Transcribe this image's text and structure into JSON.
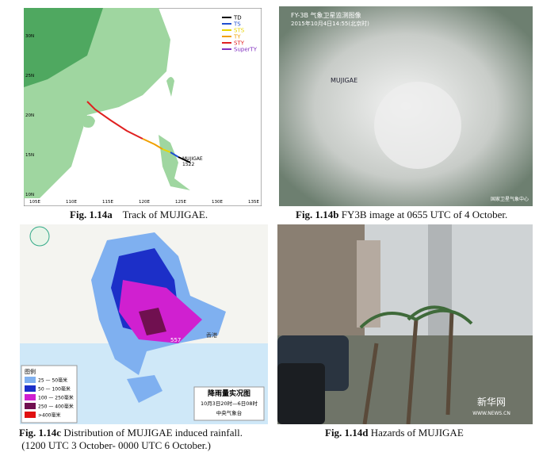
{
  "panel_a": {
    "legend": [
      {
        "name": "TD",
        "color": "#000000"
      },
      {
        "name": "TS",
        "color": "#1f4fd0"
      },
      {
        "name": "STS",
        "color": "#e8d400"
      },
      {
        "name": "TY",
        "color": "#f0a000"
      },
      {
        "name": "STY",
        "color": "#e02020"
      },
      {
        "name": "SuperTY",
        "color": "#8030c0"
      }
    ],
    "lat_labels": [
      "30N",
      "25N",
      "20N",
      "15N",
      "10N"
    ],
    "lon_labels": [
      "105E",
      "110E",
      "115E",
      "120E",
      "125E",
      "130E",
      "135E"
    ],
    "storm_name": "MUJIGAE",
    "storm_number": "1522"
  },
  "panel_b": {
    "header": "FY-3B 气象卫星监测图像",
    "time": "2015年10月4日14:55(北京时)",
    "storm_name": "MUJIGAE",
    "credit": "国家卫星气象中心"
  },
  "panel_c": {
    "legend_title": "图例",
    "legend": [
      {
        "label": "25 — 50毫米",
        "color": "#7fb0f0"
      },
      {
        "label": "50 — 100毫米",
        "color": "#1c2fc8"
      },
      {
        "label": "100 — 250毫米",
        "color": "#d020d0"
      },
      {
        "label": "250 — 400毫米",
        "color": "#701050"
      },
      {
        "label": ">400毫米",
        "color": "#e01010"
      }
    ],
    "title": "降雨量实况图",
    "period": "10月3日20时—6日08时",
    "agency": "中央气象台",
    "max_value": "557",
    "city": "香港"
  },
  "panel_d": {
    "watermark": "新华网",
    "url": "WWW.NEWS.CN"
  },
  "captions": [
    {
      "label": "Fig. 1.14a",
      "text": "Track of MUJIGAE."
    },
    {
      "label": "Fig. 1.14b",
      "text": "FY3B image at 0655 UTC of 4 October."
    },
    {
      "label": "Fig. 1.14c",
      "text": "Distribution of MUJIGAE induced rainfall.",
      "text2": "(1200 UTC 3 October- 0000 UTC 6 October.)"
    },
    {
      "label": "Fig. 1.14d",
      "text": "Hazards of MUJIGAE"
    }
  ]
}
